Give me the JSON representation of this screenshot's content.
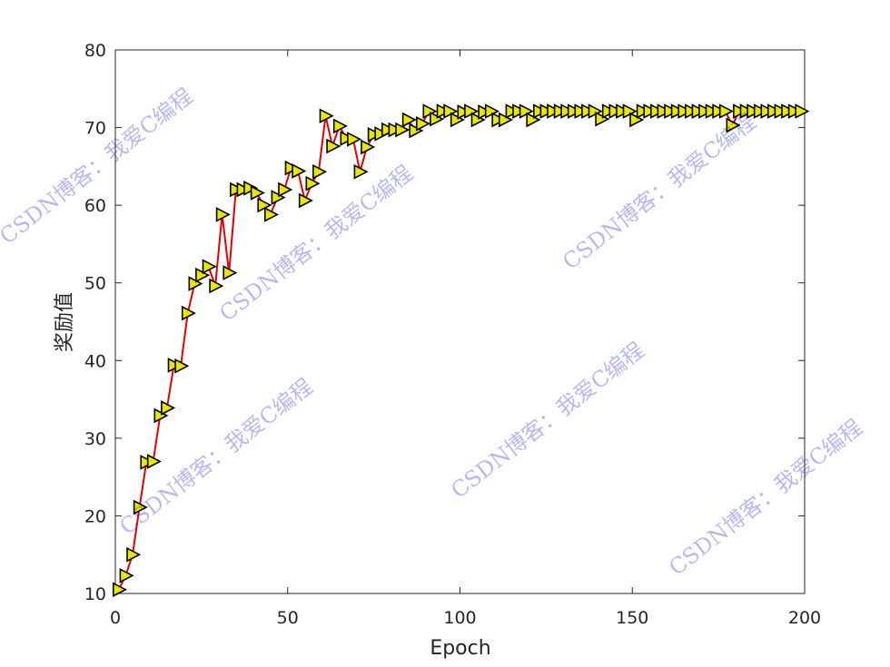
{
  "chart_data": {
    "type": "line",
    "xlabel": "Epoch",
    "ylabel": "奖励值",
    "xlim": [
      0,
      200
    ],
    "ylim": [
      10,
      80
    ],
    "xticks": [
      0,
      50,
      100,
      150,
      200
    ],
    "yticks": [
      10,
      20,
      30,
      40,
      50,
      60,
      70,
      80
    ],
    "grid": false,
    "line_color": "#e00000",
    "marker": "triangle-right",
    "marker_face_color": "#e6e600",
    "marker_edge_color": "#000000",
    "series": [
      {
        "x": [
          1,
          3,
          5,
          7,
          9,
          11,
          13,
          15,
          17,
          19,
          21,
          23,
          25,
          27,
          29,
          31,
          33,
          35,
          37,
          39,
          41,
          43,
          45,
          47,
          49,
          51,
          53,
          55,
          57,
          59,
          61,
          63,
          65,
          67,
          69,
          71,
          73,
          75,
          77,
          79,
          81,
          83,
          85,
          87,
          89,
          91,
          93,
          95,
          97,
          99,
          101,
          103,
          105,
          107,
          109,
          111,
          113,
          115,
          117,
          119,
          121,
          123,
          125,
          127,
          129,
          131,
          133,
          135,
          137,
          139,
          141,
          143,
          145,
          147,
          149,
          151,
          153,
          155,
          157,
          159,
          161,
          163,
          165,
          167,
          169,
          171,
          173,
          175,
          177,
          179,
          181,
          183,
          185,
          187,
          189,
          191,
          193,
          195,
          197,
          199
        ],
        "y": [
          10.5,
          12.3,
          15.0,
          21.1,
          26.9,
          27.0,
          32.9,
          33.9,
          39.4,
          39.3,
          46.1,
          49.9,
          51.0,
          52.1,
          49.6,
          58.8,
          51.3,
          62.0,
          62.0,
          62.2,
          61.6,
          60.0,
          58.8,
          61.0,
          62.0,
          64.8,
          64.4,
          60.6,
          62.8,
          64.3,
          71.5,
          67.6,
          70.2,
          68.6,
          68.5,
          64.3,
          67.5,
          69.1,
          69.2,
          69.7,
          69.7,
          69.7,
          71.0,
          69.6,
          70.5,
          72.1,
          71.1,
          72.1,
          72.1,
          71.0,
          72.0,
          72.1,
          71.0,
          72.0,
          72.1,
          71.0,
          71.0,
          72.1,
          72.1,
          72.1,
          71.0,
          72.1,
          72.1,
          72.1,
          72.1,
          72.1,
          72.1,
          72.1,
          72.1,
          72.1,
          71.1,
          72.1,
          72.1,
          72.1,
          72.1,
          71.0,
          72.1,
          72.1,
          72.1,
          72.1,
          72.1,
          72.1,
          72.1,
          72.1,
          72.1,
          72.1,
          72.1,
          72.1,
          72.1,
          70.3,
          72.1,
          72.1,
          72.1,
          72.1,
          72.1,
          72.1,
          72.1,
          72.1,
          72.1,
          72.1
        ]
      }
    ]
  },
  "watermarks": [
    "CSDN博客：我爱C编程",
    "CSDN博客：我爱C编程",
    "CSDN博客：我爱C编程",
    "CSDN博客：我爱C编程",
    "CSDN博客：我爱C编程",
    "CSDN博客：我爱C编程"
  ]
}
